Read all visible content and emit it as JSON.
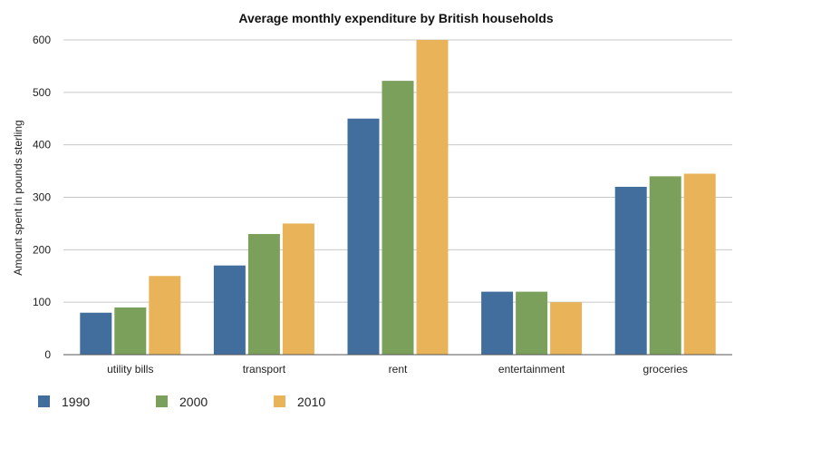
{
  "chart_data": {
    "type": "bar",
    "title": "Average monthly expenditure by British households",
    "xlabel": "",
    "ylabel": "Amount spent in pounds sterling",
    "categories": [
      "utility bills",
      "transport",
      "rent",
      "entertainment",
      "groceries"
    ],
    "series": [
      {
        "name": "1990",
        "values": [
          80,
          170,
          450,
          120,
          320
        ],
        "color": "#416e9c"
      },
      {
        "name": "2000",
        "values": [
          90,
          230,
          522,
          120,
          340
        ],
        "color": "#7ba05b"
      },
      {
        "name": "2010",
        "values": [
          150,
          250,
          600,
          100,
          345
        ],
        "color": "#e9b459"
      }
    ],
    "ylim": [
      0,
      600
    ],
    "yticks": [
      "0",
      "100",
      "200",
      "300",
      "400",
      "500",
      "600"
    ],
    "grid": true,
    "legend_position": "bottom-left"
  }
}
